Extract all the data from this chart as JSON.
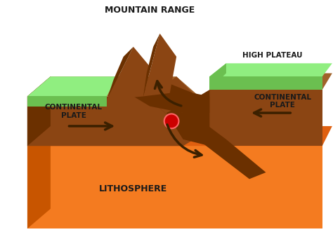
{
  "bg_color": "#ffffff",
  "colors": {
    "orange_bright": "#F47B20",
    "orange_mid": "#E06010",
    "orange_dark": "#C85500",
    "brown_light": "#A0622A",
    "brown_mid": "#8B4513",
    "brown_dark": "#6B3000",
    "brown_deeper": "#4A2000",
    "green_top": "#90EE80",
    "green_front": "#6BBF50",
    "red_dot": "#CC0000",
    "arrow": "#3B2000",
    "text": "#1a1a1a"
  },
  "labels": {
    "mountain_range": "MOUNTAIN RANGE",
    "high_plateau": "HIGH PLATEAU",
    "cont_left": "CONTINENTAL\nPLATE",
    "cont_right": "CONTINENTAL\nPLATE",
    "lithosphere": "LITHOSPHERE"
  }
}
